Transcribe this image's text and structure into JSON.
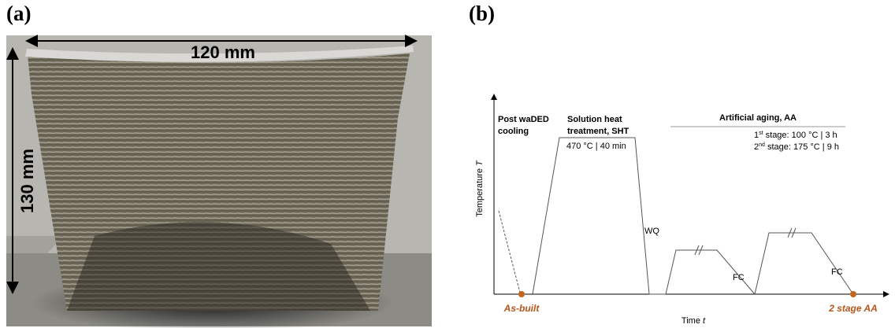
{
  "panel_a": {
    "label": "(a)",
    "width_label": "120 mm",
    "height_label": "130 mm"
  },
  "panel_b": {
    "label": "(b)",
    "y_axis": {
      "name": "Temperature ",
      "symbol": "T"
    },
    "x_axis": {
      "name": "Time ",
      "symbol": "t"
    },
    "phases": {
      "cooling": [
        "Post waDED",
        "cooling"
      ],
      "sht": {
        "title": [
          "Solution heat",
          "treatment, SHT"
        ],
        "condition": "470 °C | 40 min",
        "quench": "WQ"
      },
      "aa": {
        "title": "Artificial aging, AA",
        "stage_1": {
          "number": "1",
          "suffix": "st",
          "text": " stage: 100 °C | 3 h"
        },
        "stage_2": {
          "number": "2",
          "suffix": "nd",
          "text": " stage: 175 °C | 9 h"
        },
        "cooling_1": "FC",
        "cooling_2": "FC"
      }
    },
    "states": {
      "start": "As-built",
      "end": "2 stage AA"
    }
  }
}
